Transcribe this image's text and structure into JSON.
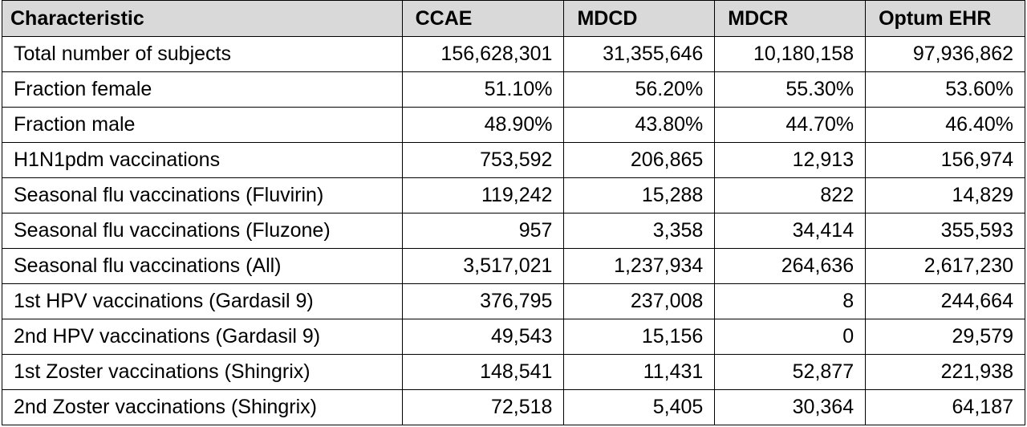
{
  "table": {
    "headers": [
      "Characteristic",
      "CCAE",
      "MDCD",
      "MDCR",
      "Optum EHR"
    ],
    "rows": [
      {
        "label": "Total number of subjects",
        "values": [
          "156,628,301",
          "31,355,646",
          "10,180,158",
          "97,936,862"
        ]
      },
      {
        "label": "Fraction female",
        "values": [
          "51.10%",
          "56.20%",
          "55.30%",
          "53.60%"
        ]
      },
      {
        "label": "Fraction male",
        "values": [
          "48.90%",
          "43.80%",
          "44.70%",
          "46.40%"
        ]
      },
      {
        "label": "H1N1pdm vaccinations",
        "values": [
          "753,592",
          "206,865",
          "12,913",
          "156,974"
        ]
      },
      {
        "label": "Seasonal flu vaccinations (Fluvirin)",
        "values": [
          "119,242",
          "15,288",
          "822",
          "14,829"
        ]
      },
      {
        "label": "Seasonal flu vaccinations (Fluzone)",
        "values": [
          "957",
          "3,358",
          "34,414",
          "355,593"
        ]
      },
      {
        "label": "Seasonal flu vaccinations (All)",
        "values": [
          "3,517,021",
          "1,237,934",
          "264,636",
          "2,617,230"
        ]
      },
      {
        "label": "1st HPV vaccinations (Gardasil 9)",
        "values": [
          "376,795",
          "237,008",
          "8",
          "244,664"
        ]
      },
      {
        "label": "2nd HPV vaccinations (Gardasil 9)",
        "values": [
          "49,543",
          "15,156",
          "0",
          "29,579"
        ]
      },
      {
        "label": "1st Zoster vaccinations (Shingrix)",
        "values": [
          "148,541",
          "11,431",
          "52,877",
          "221,938"
        ]
      },
      {
        "label": "2nd Zoster vaccinations (Shingrix)",
        "values": [
          "72,518",
          "5,405",
          "30,364",
          "64,187"
        ]
      }
    ]
  },
  "colors": {
    "header_background": "#d9d9d9",
    "border": "#000000",
    "text": "#000000"
  }
}
